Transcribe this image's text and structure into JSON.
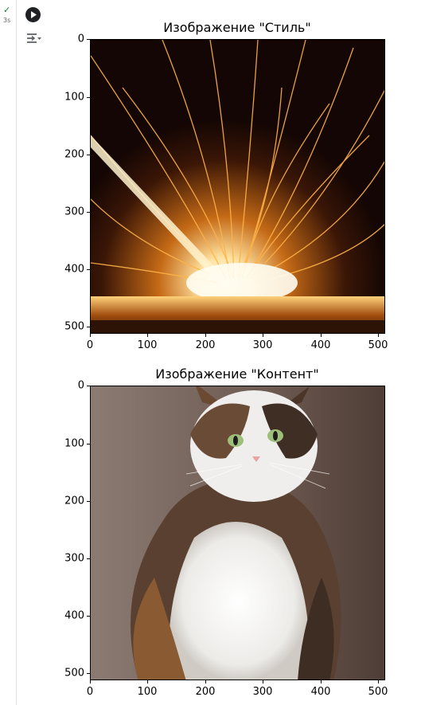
{
  "cell": {
    "status": "completed",
    "runtime": "3s",
    "run_button_label": "Run cell",
    "output_toggle_label": "Output options"
  },
  "plots": [
    {
      "title": "Изображение \"Стиль\"",
      "image_subject": "orange sparks spraying from a grinding point against a dark background",
      "xlim": [
        0,
        512
      ],
      "ylim": [
        512,
        0
      ],
      "xticks": [
        "0",
        "100",
        "200",
        "300",
        "400",
        "500"
      ],
      "yticks": [
        "0",
        "100",
        "200",
        "300",
        "400",
        "500"
      ]
    },
    {
      "title": "Изображение \"Контент\"",
      "image_subject": "fluffy calico cat with green eyes sitting against a brown wall",
      "xlim": [
        0,
        512
      ],
      "ylim": [
        512,
        0
      ],
      "xticks": [
        "0",
        "100",
        "200",
        "300",
        "400",
        "500"
      ],
      "yticks": [
        "0",
        "100",
        "200",
        "300",
        "400",
        "500"
      ]
    }
  ],
  "colors": {
    "check": "#188038",
    "spark": "#ffb347",
    "cat_bg": "#6e5a50"
  }
}
